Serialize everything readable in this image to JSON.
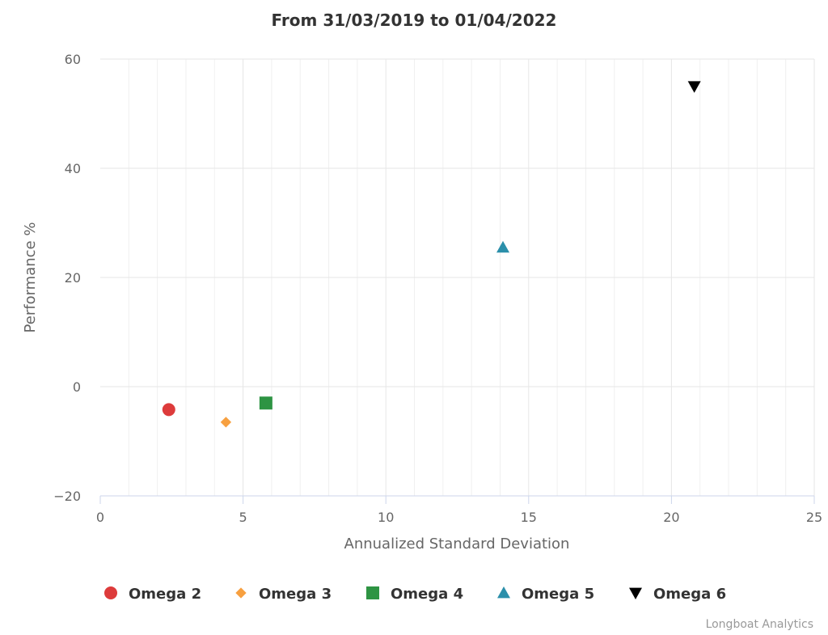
{
  "chart_data": {
    "type": "scatter",
    "title": "From 31/03/2019 to 01/04/2022",
    "xlabel": "Annualized Standard Deviation",
    "ylabel": "Performance %",
    "xlim": [
      0,
      25
    ],
    "ylim": [
      -20,
      60
    ],
    "x_ticks": [
      0,
      5,
      10,
      15,
      20,
      25
    ],
    "x_tick_labels": [
      "0",
      "5",
      "10",
      "15",
      "20",
      "25"
    ],
    "y_ticks": [
      -20,
      0,
      20,
      40,
      60
    ],
    "y_tick_labels": [
      "−20",
      "0",
      "20",
      "40",
      "60"
    ],
    "grid": true,
    "legend_position": "bottom",
    "series": [
      {
        "name": "Omega 2",
        "marker": "circle",
        "color": "#dd3b3b",
        "x": 2.4,
        "y": -4.2
      },
      {
        "name": "Omega 3",
        "marker": "diamond",
        "color": "#f7a040",
        "x": 4.4,
        "y": -6.5
      },
      {
        "name": "Omega 4",
        "marker": "square",
        "color": "#2e9443",
        "x": 5.8,
        "y": -3.0
      },
      {
        "name": "Omega 5",
        "marker": "triangle",
        "color": "#2b8faa",
        "x": 14.1,
        "y": 25.5
      },
      {
        "name": "Omega 6",
        "marker": "triangle-down",
        "color": "#000000",
        "x": 20.8,
        "y": 55.0
      }
    ]
  },
  "credits": "Longboat Analytics"
}
